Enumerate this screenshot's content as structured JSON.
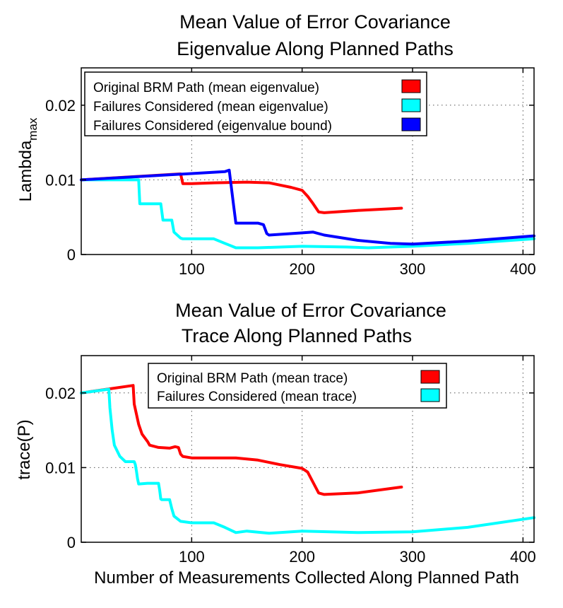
{
  "chart_data": [
    {
      "type": "line",
      "title": [
        "Mean Value of Error Covariance",
        "Eigenvalue Along Planned Paths"
      ],
      "xlabel": "",
      "ylabel": "Lambda",
      "ylabel_sub": "max",
      "xlim": [
        0,
        410
      ],
      "ylim": [
        0,
        0.025
      ],
      "xticks": [
        100,
        200,
        300,
        400
      ],
      "yticks": [
        0,
        0.01,
        0.02
      ],
      "xtick_labels": [
        "100",
        "200",
        "300",
        "400"
      ],
      "ytick_labels": [
        "0",
        "0.01",
        "0.02"
      ],
      "grid": true,
      "legend_position": "top-left",
      "series": [
        {
          "name": "Original BRM Path (mean eigenvalue)",
          "color": "#ff0000",
          "x": [
            0,
            90,
            92,
            100,
            120,
            150,
            170,
            180,
            190,
            200,
            205,
            210,
            215,
            220,
            250,
            290
          ],
          "y": [
            0.01,
            0.0108,
            0.0095,
            0.0095,
            0.0096,
            0.0097,
            0.0096,
            0.0093,
            0.009,
            0.0086,
            0.0078,
            0.0068,
            0.0057,
            0.0056,
            0.0059,
            0.0062
          ]
        },
        {
          "name": "Failures Considered  (mean eigenvalue)",
          "color": "#00ffff",
          "x": [
            0,
            35,
            52,
            53,
            60,
            68,
            72,
            74,
            82,
            84,
            90,
            92,
            100,
            120,
            130,
            135,
            140,
            160,
            200,
            240,
            260,
            300,
            350,
            410
          ],
          "y": [
            0.01,
            0.01,
            0.01,
            0.0068,
            0.0068,
            0.0068,
            0.0068,
            0.0046,
            0.0046,
            0.003,
            0.0022,
            0.0021,
            0.0021,
            0.0021,
            0.0015,
            0.0012,
            0.0009,
            0.0009,
            0.0011,
            0.001,
            0.0009,
            0.0011,
            0.0015,
            0.0021
          ]
        },
        {
          "name": "Failures Considered (eigenvalue bound)",
          "color": "#0000ff",
          "x": [
            0,
            130,
            134,
            138,
            140,
            160,
            165,
            168,
            170,
            200,
            210,
            220,
            250,
            280,
            300,
            350,
            410
          ],
          "y": [
            0.01,
            0.0111,
            0.0113,
            0.0065,
            0.0042,
            0.0042,
            0.004,
            0.0028,
            0.0026,
            0.0029,
            0.003,
            0.0026,
            0.0019,
            0.0015,
            0.0014,
            0.0018,
            0.0025
          ]
        }
      ]
    },
    {
      "type": "line",
      "title": [
        "Mean Value of Error Covariance",
        "Trace Along Planned Paths"
      ],
      "xlabel": "Number of Measurements Collected Along Planned Path",
      "ylabel": "trace(P)",
      "xlim": [
        0,
        410
      ],
      "ylim": [
        0,
        0.025
      ],
      "xticks": [
        100,
        200,
        300,
        400
      ],
      "yticks": [
        0,
        0.01,
        0.02
      ],
      "xtick_labels": [
        "100",
        "200",
        "300",
        "400"
      ],
      "ytick_labels": [
        "0",
        "0.01",
        "0.02"
      ],
      "grid": true,
      "legend_position": "top-right",
      "series": [
        {
          "name": "Original BRM Path (mean trace)",
          "color": "#ff0000",
          "x": [
            0,
            47,
            48,
            52,
            55,
            60,
            62,
            70,
            80,
            85,
            88,
            90,
            92,
            100,
            110,
            120,
            140,
            160,
            180,
            200,
            205,
            210,
            215,
            220,
            250,
            290
          ],
          "y": [
            0.02,
            0.021,
            0.0185,
            0.0158,
            0.0145,
            0.0135,
            0.013,
            0.0127,
            0.0126,
            0.0128,
            0.0127,
            0.0118,
            0.0115,
            0.0113,
            0.0113,
            0.0113,
            0.0113,
            0.011,
            0.0104,
            0.0099,
            0.0094,
            0.008,
            0.0066,
            0.0064,
            0.0066,
            0.0074
          ]
        },
        {
          "name": "Failures Considered (mean trace)",
          "color": "#00ffff",
          "x": [
            0,
            25,
            26,
            28,
            30,
            35,
            40,
            48,
            49,
            50,
            51,
            52,
            60,
            70,
            71,
            72,
            73,
            75,
            80,
            82,
            84,
            90,
            100,
            120,
            130,
            140,
            150,
            170,
            200,
            250,
            300,
            350,
            410
          ],
          "y": [
            0.02,
            0.0205,
            0.018,
            0.015,
            0.013,
            0.0115,
            0.0108,
            0.0108,
            0.0104,
            0.0095,
            0.0085,
            0.0078,
            0.0079,
            0.0079,
            0.007,
            0.0058,
            0.0057,
            0.0057,
            0.0057,
            0.0045,
            0.0035,
            0.0028,
            0.0026,
            0.0026,
            0.002,
            0.0013,
            0.0015,
            0.0012,
            0.0015,
            0.0013,
            0.0014,
            0.002,
            0.0033
          ]
        }
      ]
    }
  ]
}
